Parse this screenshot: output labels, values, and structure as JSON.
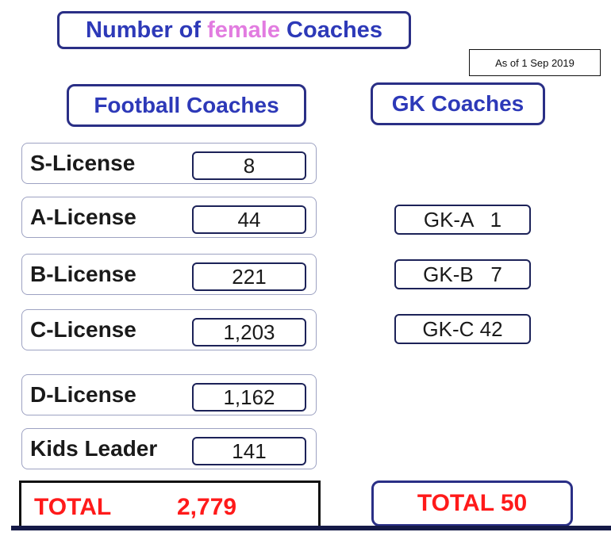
{
  "title": {
    "prefix": "Number of ",
    "accent": "female",
    "suffix": " Coaches",
    "accent_color": "#e27ce0",
    "text_color": "#2d39b8"
  },
  "as_of": "As of 1 Sep 2019",
  "football": {
    "header": "Football Coaches",
    "rows": [
      {
        "label": "S-License",
        "value": "8"
      },
      {
        "label": "A-License",
        "value": "44"
      },
      {
        "label": "B-License",
        "value": "221"
      },
      {
        "label": "C-License",
        "value": "1,203"
      },
      {
        "label": "D-License",
        "value": "1,162"
      },
      {
        "label": "Kids Leader",
        "value": "141"
      }
    ],
    "total_label": "TOTAL",
    "total_value": "2,779"
  },
  "gk": {
    "header": "GK Coaches",
    "items": [
      {
        "label": "GK-A   1"
      },
      {
        "label": "GK-B   7"
      },
      {
        "label": "GK-C 42"
      }
    ],
    "total": "TOTAL 50"
  },
  "colors": {
    "header_blue": "#2d39b8",
    "border_navy": "#2a2f86",
    "total_red": "#ff1a1a"
  }
}
